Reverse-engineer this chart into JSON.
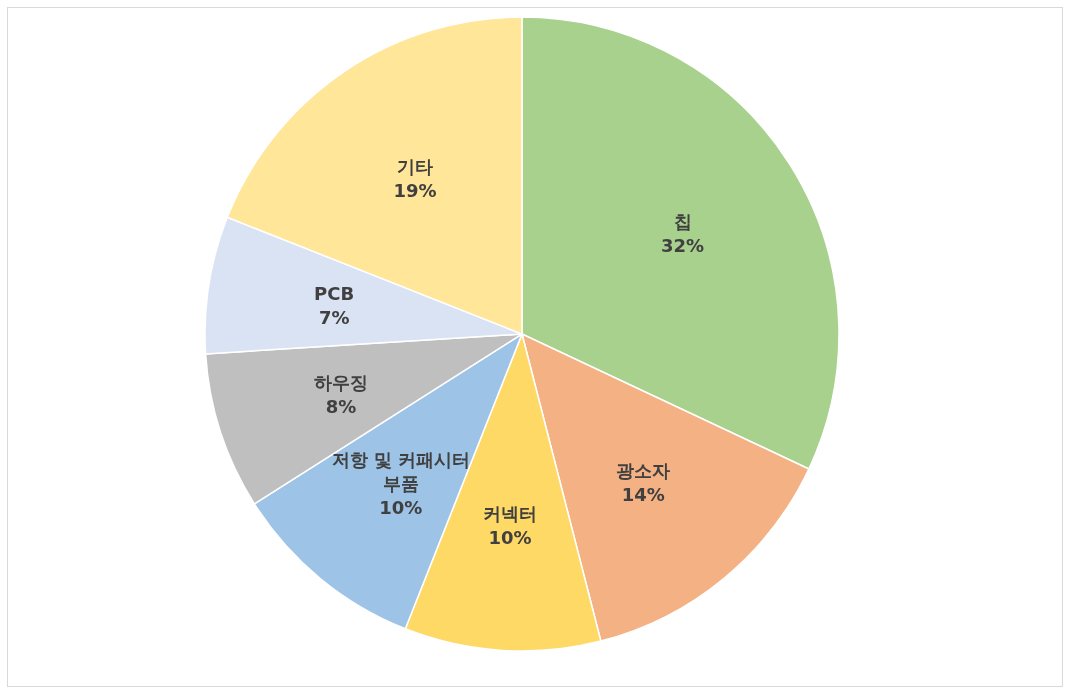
{
  "chart_data": {
    "type": "pie",
    "categories": [
      "칩",
      "광소자",
      "커넥터",
      "저항 및 커패시터 부품",
      "하우징",
      "PCB",
      "기타"
    ],
    "values": [
      32,
      14,
      10,
      10,
      8,
      7,
      19
    ],
    "colors": [
      "#a9d18e",
      "#f4b183",
      "#ffd966",
      "#9dc3e6",
      "#bfbfbf",
      "#dae3f3",
      "#ffe699"
    ],
    "value_labels": [
      "32%",
      "14%",
      "10%",
      "10%",
      "8%",
      "7%",
      "19%"
    ]
  }
}
